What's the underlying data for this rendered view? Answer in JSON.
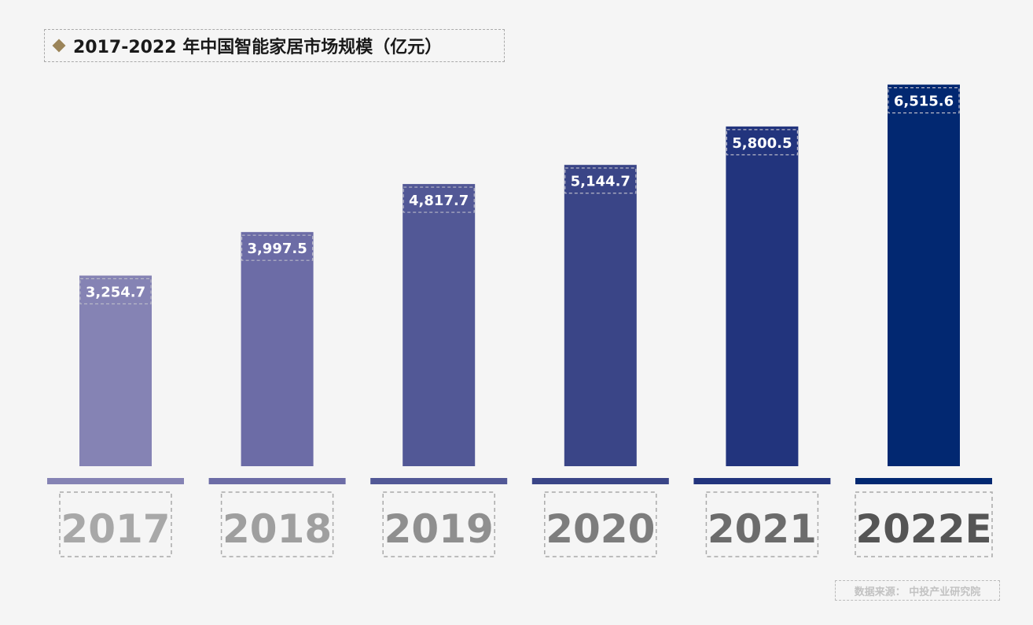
{
  "title": "2017-2022 年中国智能家居市场规模（亿元）",
  "source": "数据来源： 中投产业研究院",
  "colors": {
    "bars": [
      "#8583b4",
      "#6c6ca6",
      "#525896",
      "#3a4587",
      "#22347d",
      "#022871"
    ],
    "years": [
      "#a8a8a8",
      "#9f9f9f",
      "#8f8f8f",
      "#7d7d7d",
      "#6c6c6c",
      "#555555"
    ],
    "frame": "#aaaaaa"
  },
  "chart_data": {
    "type": "bar",
    "title": "2017-2022 年中国智能家居市场规模（亿元）",
    "categories": [
      "2017",
      "2018",
      "2019",
      "2020",
      "2021",
      "2022E"
    ],
    "values": [
      3254.7,
      3997.5,
      4817.7,
      5144.7,
      5800.5,
      6515.6
    ],
    "value_labels": [
      "3,254.7",
      "3,997.5",
      "4,817.7",
      "5,144.7",
      "5,800.5",
      "6,515.6"
    ],
    "xlabel": "",
    "ylabel": "",
    "grid": false,
    "legend": "none"
  }
}
